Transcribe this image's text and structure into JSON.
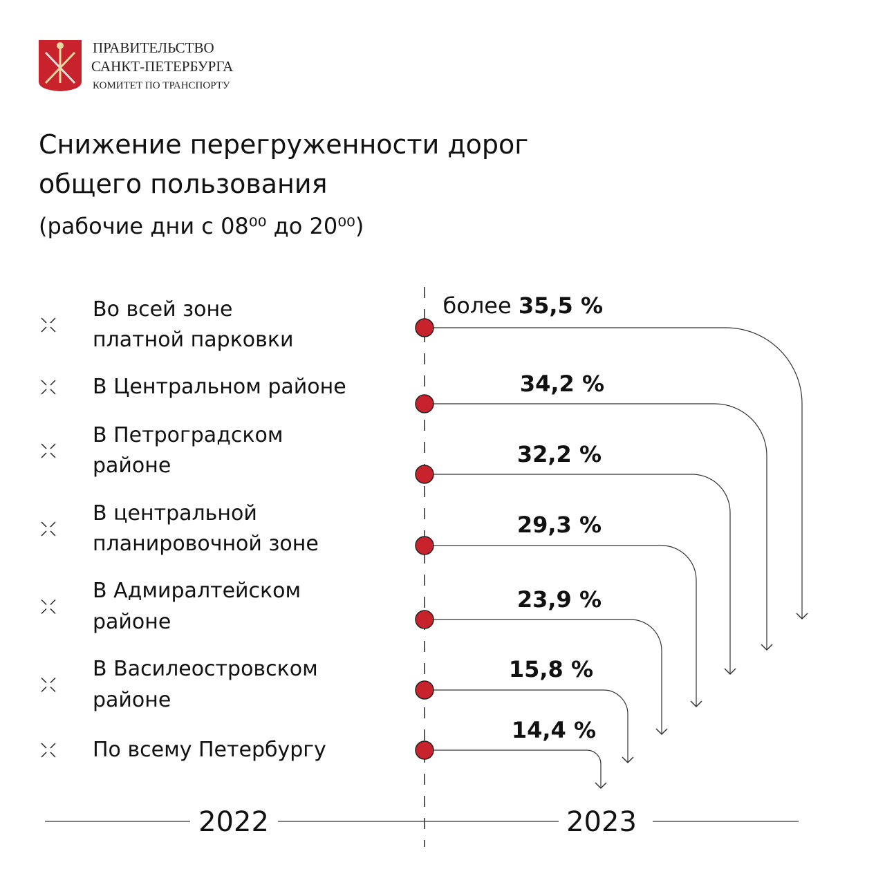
{
  "header": {
    "org_lines": [
      "ПРАВИТЕЛЬСТВО",
      "САНКТ-ПЕТЕРБУРГА",
      "КОМИТЕТ ПО ТРАНСПОРТУ"
    ]
  },
  "title_lines": [
    "Снижение перегруженности дорог",
    "общего пользования"
  ],
  "subtitle": "(рабочие дни с 08⁰⁰ до 20⁰⁰)",
  "items": [
    {
      "label_lines": [
        "Во всей зоне",
        "платной парковки"
      ],
      "prefix": "более",
      "value": "35,5 %"
    },
    {
      "label_lines": [
        "В Центральном районе"
      ],
      "value": "34,2 %"
    },
    {
      "label_lines": [
        "В Петроградском",
        "районе"
      ],
      "value": "32,2 %"
    },
    {
      "label_lines": [
        "В центральной",
        "планировочной зоне"
      ],
      "value": "29,3 %"
    },
    {
      "label_lines": [
        "В Адмиралтейском",
        "районе"
      ],
      "value": "23,9 %"
    },
    {
      "label_lines": [
        "В Василеостровском",
        "районе"
      ],
      "value": "15,8 %"
    },
    {
      "label_lines": [
        "По всему Петербургу"
      ],
      "value": "14,4 %"
    }
  ],
  "years": [
    "2022",
    "2023"
  ]
}
